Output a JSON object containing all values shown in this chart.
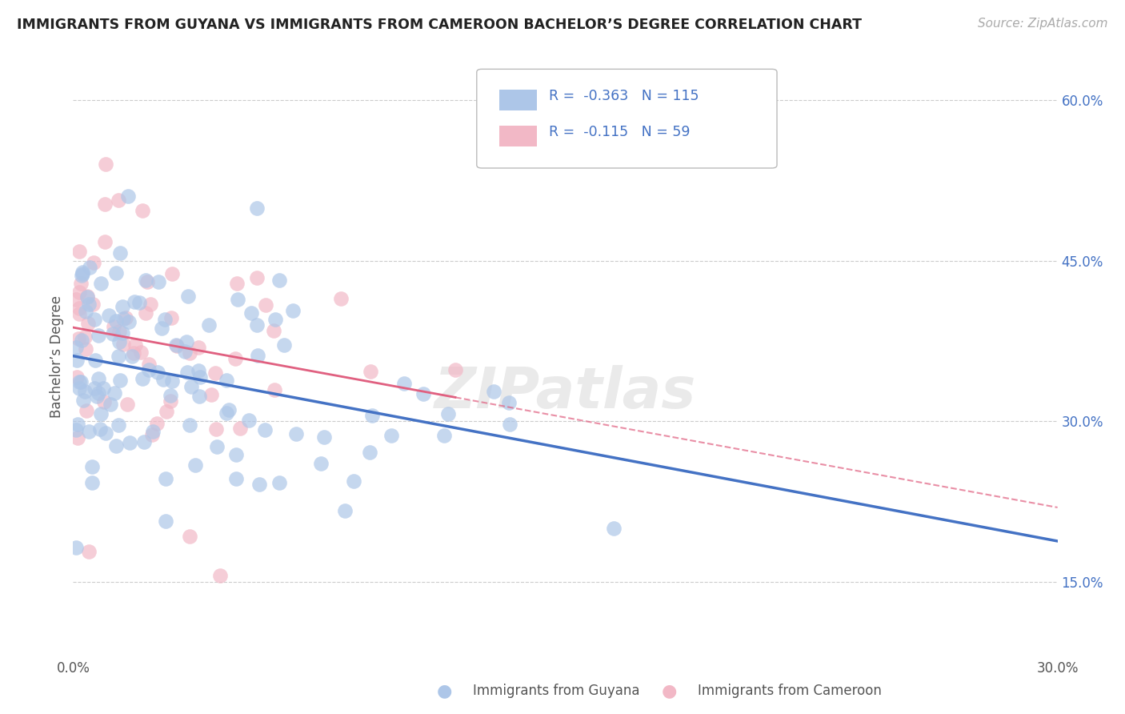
{
  "title": "IMMIGRANTS FROM GUYANA VS IMMIGRANTS FROM CAMEROON BACHELOR’S DEGREE CORRELATION CHART",
  "source": "Source: ZipAtlas.com",
  "ylabel": "Bachelor’s Degree",
  "xlabel_blue": "Immigrants from Guyana",
  "xlabel_pink": "Immigrants from Cameroon",
  "xlim": [
    0.0,
    0.3
  ],
  "ylim": [
    0.08,
    0.64
  ],
  "yticks": [
    0.15,
    0.3,
    0.45,
    0.6
  ],
  "ytick_labels": [
    "15.0%",
    "30.0%",
    "45.0%",
    "60.0%"
  ],
  "xticks": [
    0.0,
    0.05,
    0.1,
    0.15,
    0.2,
    0.25,
    0.3
  ],
  "blue_R": -0.363,
  "blue_N": 115,
  "pink_R": -0.115,
  "pink_N": 59,
  "blue_color": "#adc6e8",
  "pink_color": "#f2b8c6",
  "blue_line_color": "#4472c4",
  "pink_line_color": "#e06080",
  "watermark": "ZIPatlas",
  "blue_seed": 42,
  "pink_seed": 17,
  "blue_intercept": 0.355,
  "blue_slope": -0.6,
  "pink_intercept": 0.375,
  "pink_slope": -0.3,
  "blue_scatter_std": 0.065,
  "pink_scatter_std": 0.075
}
